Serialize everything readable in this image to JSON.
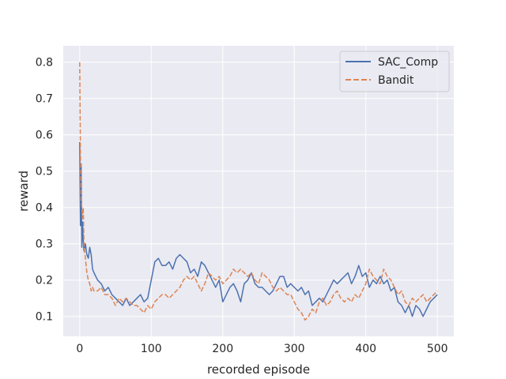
{
  "chart_data": {
    "type": "line",
    "title": "",
    "xlabel": "recorded episode",
    "ylabel": "reward",
    "xlim": [
      -23,
      523
    ],
    "ylim": [
      0.045,
      0.845
    ],
    "xticks": [
      0,
      100,
      200,
      300,
      400,
      500
    ],
    "yticks": [
      0.1,
      0.2,
      0.3,
      0.4,
      0.5,
      0.6,
      0.7,
      0.8
    ],
    "xtick_labels": [
      "0",
      "100",
      "200",
      "300",
      "400",
      "500"
    ],
    "ytick_labels": [
      "0.1",
      "0.2",
      "0.3",
      "0.4",
      "0.5",
      "0.6",
      "0.7",
      "0.8"
    ],
    "grid": true,
    "legend_position": "top-right",
    "series": [
      {
        "name": "SAC_Comp",
        "color": "#4c72b0",
        "dash": "solid",
        "x": [
          0,
          1,
          2,
          3,
          4,
          5,
          6,
          8,
          10,
          12,
          14,
          16,
          18,
          20,
          25,
          30,
          35,
          40,
          45,
          50,
          55,
          60,
          65,
          70,
          75,
          80,
          85,
          90,
          95,
          100,
          105,
          110,
          115,
          120,
          125,
          130,
          135,
          140,
          145,
          150,
          155,
          160,
          165,
          170,
          175,
          180,
          185,
          190,
          195,
          200,
          205,
          210,
          215,
          220,
          225,
          230,
          235,
          240,
          245,
          250,
          255,
          260,
          265,
          270,
          275,
          280,
          285,
          290,
          295,
          300,
          305,
          310,
          315,
          320,
          325,
          330,
          335,
          340,
          345,
          350,
          355,
          360,
          365,
          370,
          375,
          380,
          385,
          390,
          395,
          400,
          405,
          410,
          415,
          420,
          425,
          430,
          435,
          440,
          445,
          450,
          455,
          460,
          465,
          470,
          475,
          480,
          485,
          490,
          495,
          500
        ],
        "y": [
          0.58,
          0.35,
          0.52,
          0.29,
          0.36,
          0.31,
          0.28,
          0.3,
          0.27,
          0.26,
          0.29,
          0.27,
          0.23,
          0.22,
          0.2,
          0.19,
          0.17,
          0.18,
          0.16,
          0.15,
          0.14,
          0.13,
          0.15,
          0.13,
          0.14,
          0.15,
          0.16,
          0.14,
          0.15,
          0.2,
          0.25,
          0.26,
          0.24,
          0.24,
          0.25,
          0.23,
          0.26,
          0.27,
          0.26,
          0.25,
          0.22,
          0.23,
          0.21,
          0.25,
          0.24,
          0.22,
          0.2,
          0.18,
          0.2,
          0.14,
          0.16,
          0.18,
          0.19,
          0.17,
          0.14,
          0.19,
          0.2,
          0.22,
          0.19,
          0.18,
          0.18,
          0.17,
          0.16,
          0.17,
          0.19,
          0.21,
          0.21,
          0.18,
          0.19,
          0.18,
          0.17,
          0.18,
          0.16,
          0.17,
          0.13,
          0.14,
          0.15,
          0.14,
          0.16,
          0.18,
          0.2,
          0.19,
          0.2,
          0.21,
          0.22,
          0.19,
          0.21,
          0.24,
          0.21,
          0.22,
          0.18,
          0.2,
          0.19,
          0.21,
          0.19,
          0.2,
          0.17,
          0.18,
          0.14,
          0.13,
          0.11,
          0.13,
          0.1,
          0.13,
          0.12,
          0.1,
          0.12,
          0.14,
          0.15,
          0.16
        ]
      },
      {
        "name": "Bandit",
        "color": "#dd8452",
        "dash": "dashed",
        "x": [
          0,
          1,
          2,
          3,
          4,
          5,
          6,
          8,
          10,
          12,
          14,
          16,
          18,
          20,
          25,
          30,
          35,
          40,
          45,
          50,
          55,
          60,
          65,
          70,
          75,
          80,
          85,
          90,
          95,
          100,
          105,
          110,
          115,
          120,
          125,
          130,
          135,
          140,
          145,
          150,
          155,
          160,
          165,
          170,
          175,
          180,
          185,
          190,
          195,
          200,
          205,
          210,
          215,
          220,
          225,
          230,
          235,
          240,
          245,
          250,
          255,
          260,
          265,
          270,
          275,
          280,
          285,
          290,
          295,
          300,
          305,
          310,
          315,
          320,
          325,
          330,
          335,
          340,
          345,
          350,
          355,
          360,
          365,
          370,
          375,
          380,
          385,
          390,
          395,
          400,
          405,
          410,
          415,
          420,
          425,
          430,
          435,
          440,
          445,
          450,
          455,
          460,
          465,
          470,
          475,
          480,
          485,
          490,
          495,
          500
        ],
        "y": [
          0.8,
          0.55,
          0.42,
          0.4,
          0.37,
          0.4,
          0.3,
          0.26,
          0.22,
          0.2,
          0.19,
          0.17,
          0.18,
          0.17,
          0.17,
          0.18,
          0.16,
          0.16,
          0.15,
          0.13,
          0.15,
          0.14,
          0.15,
          0.14,
          0.13,
          0.13,
          0.12,
          0.11,
          0.13,
          0.12,
          0.14,
          0.15,
          0.16,
          0.16,
          0.15,
          0.16,
          0.17,
          0.18,
          0.2,
          0.21,
          0.2,
          0.21,
          0.19,
          0.17,
          0.19,
          0.22,
          0.21,
          0.2,
          0.21,
          0.19,
          0.2,
          0.21,
          0.23,
          0.22,
          0.23,
          0.22,
          0.21,
          0.22,
          0.2,
          0.19,
          0.22,
          0.21,
          0.2,
          0.18,
          0.17,
          0.18,
          0.17,
          0.16,
          0.16,
          0.14,
          0.12,
          0.11,
          0.09,
          0.1,
          0.12,
          0.11,
          0.14,
          0.15,
          0.13,
          0.14,
          0.16,
          0.17,
          0.15,
          0.14,
          0.15,
          0.14,
          0.16,
          0.15,
          0.17,
          0.19,
          0.23,
          0.21,
          0.2,
          0.19,
          0.23,
          0.21,
          0.2,
          0.18,
          0.16,
          0.17,
          0.14,
          0.13,
          0.15,
          0.14,
          0.15,
          0.16,
          0.14,
          0.15,
          0.16,
          0.17
        ]
      }
    ]
  }
}
